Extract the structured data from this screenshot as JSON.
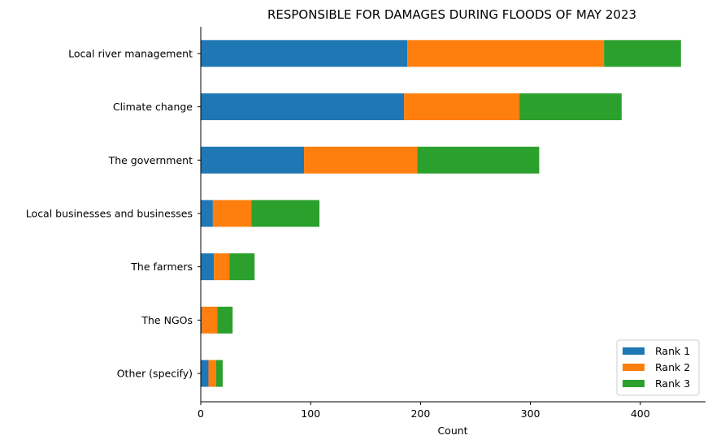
{
  "chart_data": {
    "type": "bar",
    "orientation": "horizontal",
    "stacked": true,
    "title": "RESPONSIBLE FOR DAMAGES DURING FLOODS OF MAY 2023",
    "xlabel": "Count",
    "ylabel": "",
    "xlim": [
      0,
      459
    ],
    "xticks": [
      0,
      100,
      200,
      300,
      400
    ],
    "grid": false,
    "legend_position": "bottom-right",
    "categories": [
      "Local river management",
      "Climate change",
      "The government",
      "Local businesses and businesses",
      "The farmers",
      "The NGOs",
      "Other (specify)"
    ],
    "series": [
      {
        "name": "Rank 1",
        "color": "#1f77b4",
        "values": [
          188,
          185,
          94,
          11,
          12,
          1,
          7
        ]
      },
      {
        "name": "Rank 2",
        "color": "#ff7f0e",
        "values": [
          179,
          105,
          103,
          35,
          14,
          14,
          7
        ]
      },
      {
        "name": "Rank 3",
        "color": "#2ca02c",
        "values": [
          70,
          93,
          111,
          62,
          23,
          14,
          6
        ]
      }
    ]
  }
}
